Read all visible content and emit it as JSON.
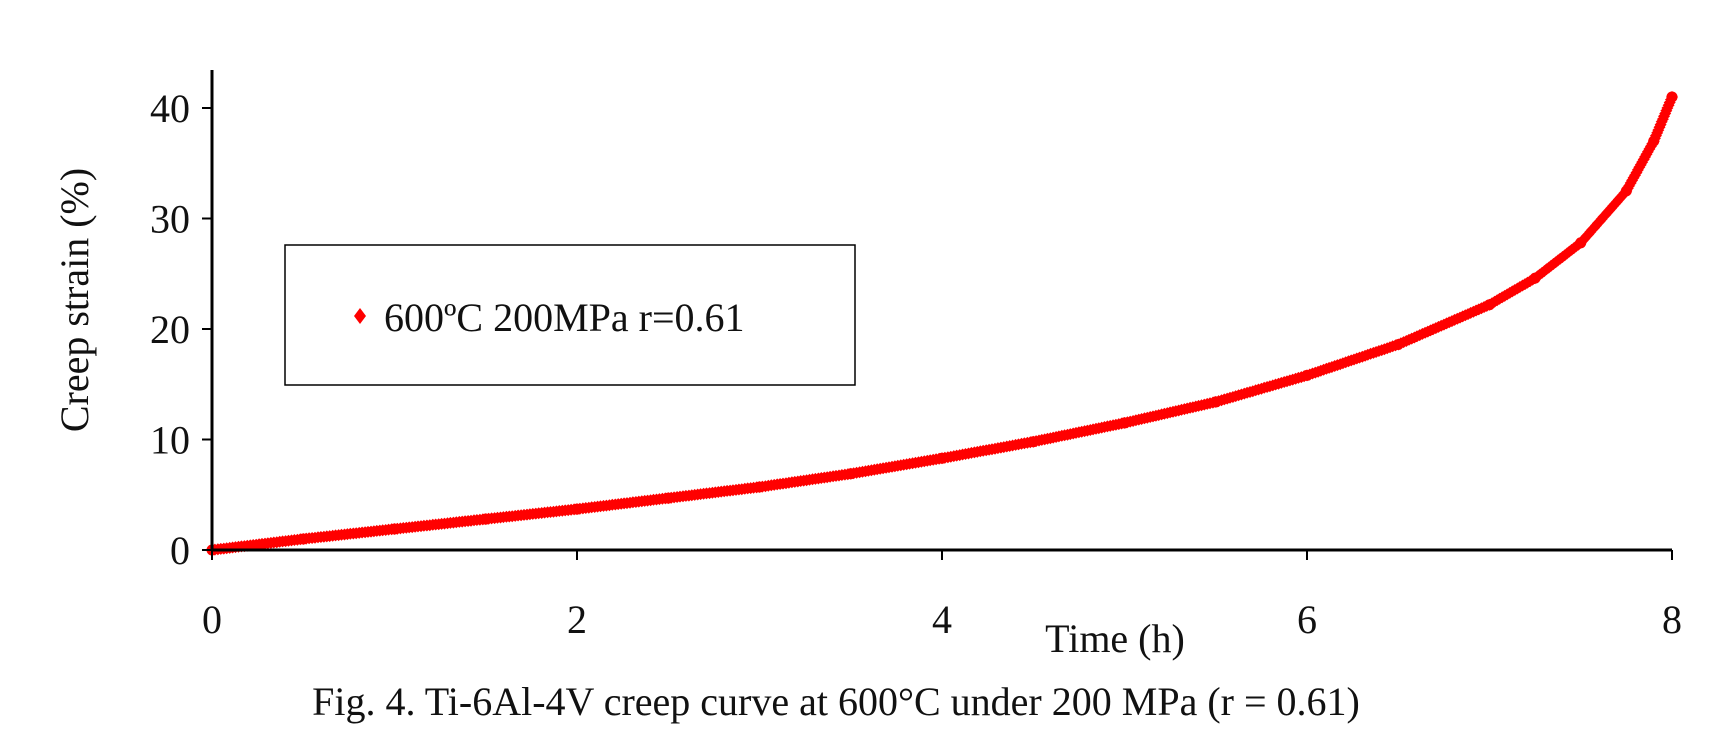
{
  "caption": "Fig. 4. Ti-6Al-4V creep curve at 600°C under 200 MPa (r = 0.61)",
  "chart_data": {
    "type": "line",
    "title": "",
    "xlabel": "Time (h)",
    "ylabel": "Creep strain (%)",
    "xlim": [
      0,
      8
    ],
    "ylim": [
      0,
      40
    ],
    "x_ticks": [
      0,
      2,
      4,
      6,
      8
    ],
    "y_ticks": [
      0,
      10,
      20,
      30,
      40
    ],
    "grid": false,
    "legend_position": "left",
    "series": [
      {
        "name": "600ºC 200MPa r=0.61",
        "color": "#ff0000",
        "x": [
          0,
          0.5,
          1,
          1.5,
          2,
          2.5,
          3,
          3.5,
          4,
          4.5,
          5,
          5.5,
          6,
          6.5,
          7,
          7.25,
          7.5,
          7.75,
          7.9,
          8.0
        ],
        "y": [
          0,
          1.0,
          1.9,
          2.8,
          3.7,
          4.7,
          5.7,
          6.9,
          8.3,
          9.8,
          11.5,
          13.4,
          15.8,
          18.6,
          22.2,
          24.6,
          27.8,
          32.5,
          37.0,
          41.0
        ]
      }
    ]
  }
}
